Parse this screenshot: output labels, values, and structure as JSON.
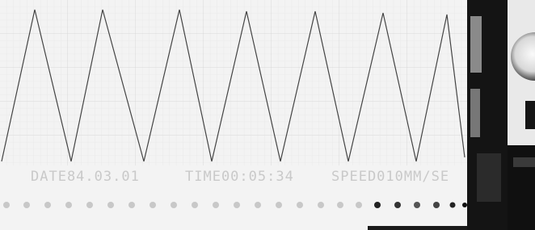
{
  "printout": {
    "date": "DATE84.03.01",
    "time": "TIME00:05:34",
    "speed": "SPEED010MM/SE"
  }
}
